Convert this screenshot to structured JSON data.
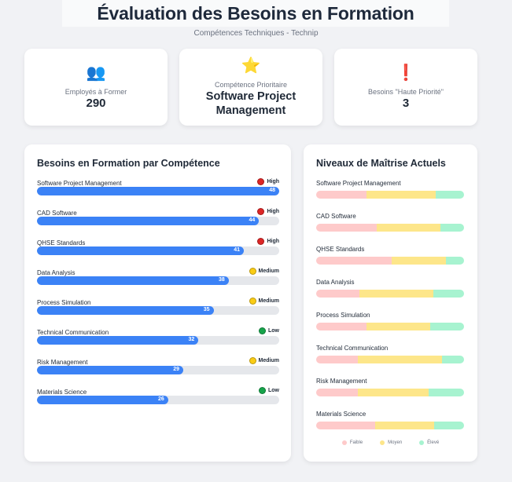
{
  "header": {
    "title": "Évaluation des Besoins en Formation",
    "subtitle": "Compétences Techniques - Technip"
  },
  "stats": [
    {
      "icon": "people-icon",
      "glyph": "👥",
      "label": "Employés à Former",
      "value": "290"
    },
    {
      "icon": "star-icon",
      "glyph": "⭐",
      "label": "Compétence Prioritaire",
      "value": "Software Project Management"
    },
    {
      "icon": "exclamation-icon",
      "glyph": "❗",
      "label": "Besoins \"Haute Priorité\"",
      "value": "3"
    }
  ],
  "needs_panel": {
    "title": "Besoins en Formation par Compétence",
    "max": 48,
    "priority_colors": {
      "High": "#dc2626",
      "Medium": "#facc15",
      "Low": "#16a34a"
    },
    "items": [
      {
        "name": "Software Project Management",
        "priority": "High",
        "value": 48
      },
      {
        "name": "CAD Software",
        "priority": "High",
        "value": 44
      },
      {
        "name": "QHSE Standards",
        "priority": "High",
        "value": 41
      },
      {
        "name": "Data Analysis",
        "priority": "Medium",
        "value": 38
      },
      {
        "name": "Process Simulation",
        "priority": "Medium",
        "value": 35
      },
      {
        "name": "Technical Communication",
        "priority": "Low",
        "value": 32
      },
      {
        "name": "Risk Management",
        "priority": "Medium",
        "value": 29
      },
      {
        "name": "Materials Science",
        "priority": "Low",
        "value": 26
      }
    ]
  },
  "mastery_panel": {
    "title": "Niveaux de Maîtrise Actuels",
    "colors": {
      "faible": "#fecaca",
      "moyen": "#fde68a",
      "eleve": "#a7f3d0"
    },
    "legend": {
      "faible": "Faible",
      "moyen": "Moyen",
      "eleve": "Élevé"
    },
    "items": [
      {
        "name": "Software Project Management",
        "faible": 34,
        "moyen": 47,
        "eleve": 19
      },
      {
        "name": "CAD Software",
        "faible": 41,
        "moyen": 43,
        "eleve": 16
      },
      {
        "name": "QHSE Standards",
        "faible": 51,
        "moyen": 37,
        "eleve": 12
      },
      {
        "name": "Data Analysis",
        "faible": 29,
        "moyen": 50,
        "eleve": 21
      },
      {
        "name": "Process Simulation",
        "faible": 34,
        "moyen": 43,
        "eleve": 23
      },
      {
        "name": "Technical Communication",
        "faible": 28,
        "moyen": 57,
        "eleve": 15
      },
      {
        "name": "Risk Management",
        "faible": 28,
        "moyen": 48,
        "eleve": 24
      },
      {
        "name": "Materials Science",
        "faible": 40,
        "moyen": 40,
        "eleve": 20
      }
    ]
  }
}
